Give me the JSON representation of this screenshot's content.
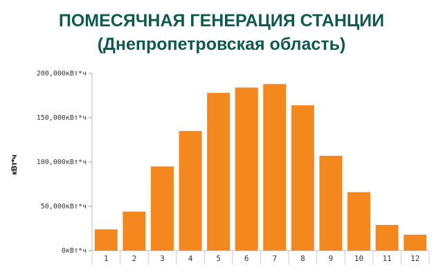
{
  "chart_data": {
    "type": "bar",
    "title": "ПОМЕСЯЧНАЯ ГЕНЕРАЦИЯ СТАНЦИИ",
    "subtitle": "(Днепропетровская область)",
    "ylabel": "кВт*ч",
    "xlabel": "",
    "categories": [
      "1",
      "2",
      "3",
      "4",
      "5",
      "6",
      "7",
      "8",
      "9",
      "10",
      "11",
      "12"
    ],
    "values": [
      24000,
      44000,
      95000,
      135000,
      178000,
      184000,
      188000,
      164000,
      107000,
      66000,
      29000,
      18000
    ],
    "ylim": [
      0,
      200000
    ],
    "yticks": [
      {
        "value": 0,
        "label": "0кВт*ч"
      },
      {
        "value": 50000,
        "label": "50,000кВт*ч"
      },
      {
        "value": 100000,
        "label": "100,000кВт*ч"
      },
      {
        "value": 150000,
        "label": "150,000кВт*ч"
      },
      {
        "value": 200000,
        "label": "200,000кВт*ч"
      }
    ],
    "bar_color": "#f5871f",
    "grid": false,
    "legend": "none"
  }
}
